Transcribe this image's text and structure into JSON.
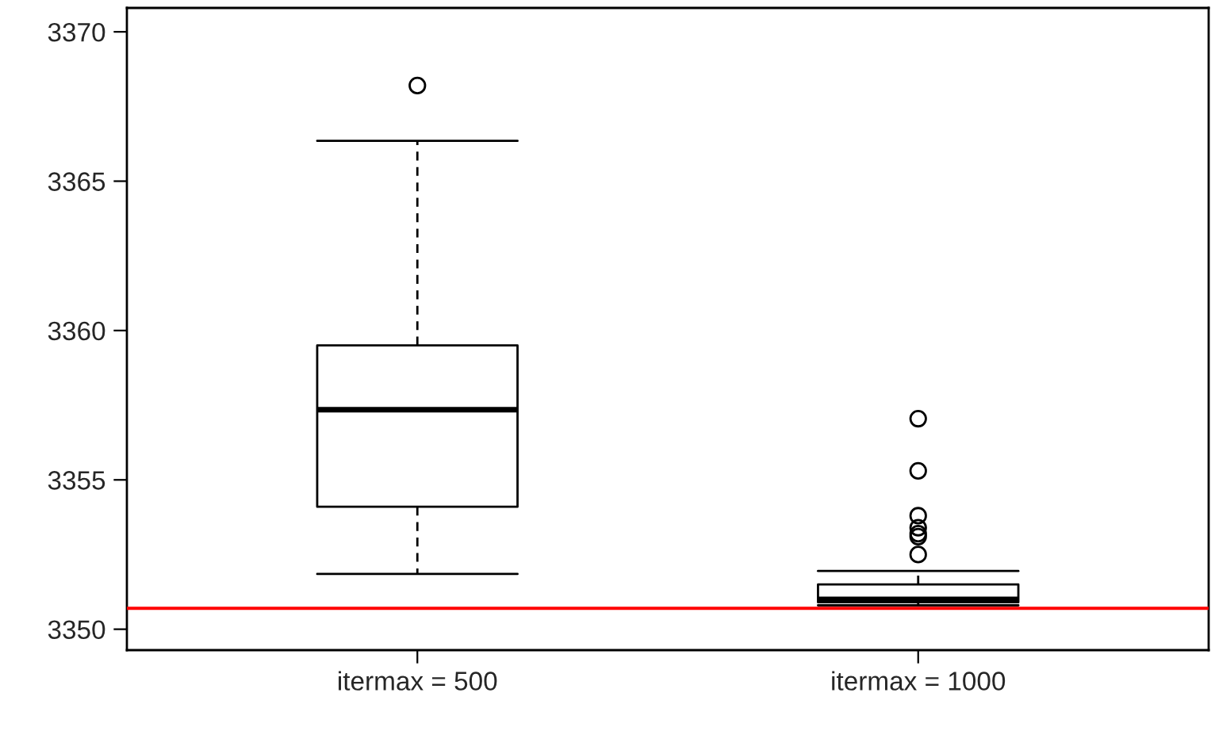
{
  "chart_data": {
    "type": "box",
    "categories": [
      "itermax = 500",
      "itermax = 1000"
    ],
    "boxes": [
      {
        "low": 3351.85,
        "q1": 3354.1,
        "median": 3357.35,
        "q3": 3359.5,
        "high": 3366.35,
        "outliers": [
          3368.2
        ]
      },
      {
        "low": 3350.8,
        "q1": 3350.9,
        "median": 3351.0,
        "q3": 3351.5,
        "high": 3351.95,
        "outliers": [
          3357.05,
          3355.3,
          3353.8,
          3353.4,
          3353.2,
          3353.1,
          3352.5
        ]
      }
    ],
    "ylim": [
      3349.3,
      3370.8
    ],
    "yticks": [
      3350,
      3355,
      3360,
      3365,
      3370
    ],
    "grid": false,
    "ref_lines": [
      {
        "axis": "y",
        "value": 3350.7,
        "color": "#ff0000"
      }
    ]
  }
}
